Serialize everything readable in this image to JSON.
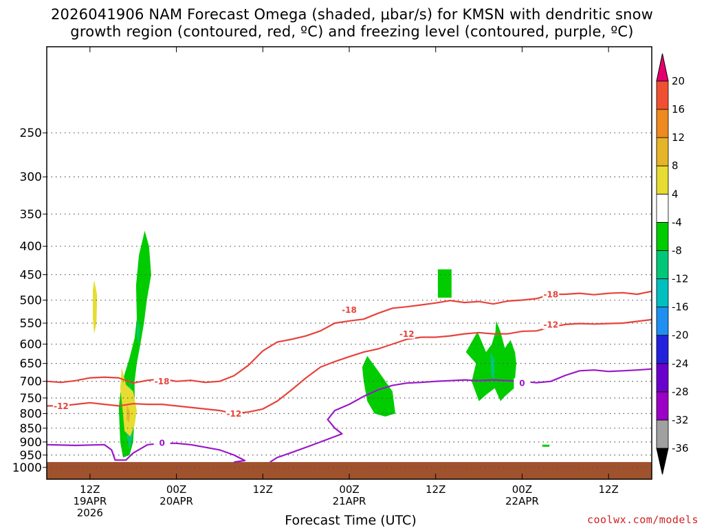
{
  "title": {
    "line1": "2026041906 NAM Forecast Omega (shaded, μbar/s) for KMSN with dendritic snow",
    "line2": "growth region (contoured, red, ºC) and freezing level (contoured, purple, ºC)"
  },
  "credit": "coolwx.com/models",
  "colors": {
    "dgz": "#e8423a",
    "freezing": "#9a17c8",
    "ground": "#a0522d",
    "grid": "#555555",
    "colorbar": [
      "#000000",
      "#a0a0a0",
      "#9b00c4",
      "#6a00cc",
      "#2222dd",
      "#1f8ff0",
      "#00bfbf",
      "#00c878",
      "#00cc00",
      "#ffffff",
      "#e6dc32",
      "#e6b428",
      "#ee8a1e",
      "#f05032",
      "#e6006e"
    ]
  },
  "chart_data": {
    "type": "time-height cross section (filled contour + line contours)",
    "xlabel": "Forecast Time (UTC)",
    "ylabel": "",
    "x_range_hours": [
      0,
      84
    ],
    "y_levels_hPa": [
      250,
      300,
      350,
      400,
      450,
      500,
      550,
      600,
      650,
      700,
      750,
      800,
      850,
      900,
      950,
      1000
    ],
    "y_range_hPa": [
      1050,
      175
    ],
    "y_scale": "log-pressure",
    "x_ticks": [
      {
        "hour": 6,
        "line1": "12Z",
        "line2": "19APR",
        "line3": "2026"
      },
      {
        "hour": 18,
        "line1": "00Z",
        "line2": "20APR",
        "line3": ""
      },
      {
        "hour": 30,
        "line1": "12Z",
        "line2": "",
        "line3": ""
      },
      {
        "hour": 42,
        "line1": "00Z",
        "line2": "21APR",
        "line3": ""
      },
      {
        "hour": 54,
        "line1": "12Z",
        "line2": "",
        "line3": ""
      },
      {
        "hour": 66,
        "line1": "00Z",
        "line2": "22APR",
        "line3": ""
      },
      {
        "hour": 78,
        "line1": "12Z",
        "line2": "",
        "line3": ""
      }
    ],
    "grid": true,
    "ground_pressure_hPa": 978,
    "colorbar": {
      "units": "μbar/s",
      "labels": [
        "20",
        "16",
        "12",
        "8",
        "4",
        "-4",
        "-8",
        "-12",
        "-16",
        "-20",
        "-24",
        "-28",
        "-32",
        "-36"
      ]
    },
    "contours": [
      {
        "label": "-18",
        "color": "red",
        "points": [
          [
            0,
            700
          ],
          [
            2,
            703
          ],
          [
            4,
            698
          ],
          [
            6,
            690
          ],
          [
            8,
            688
          ],
          [
            10,
            690
          ],
          [
            12,
            705
          ],
          [
            14,
            697
          ],
          [
            16,
            693
          ],
          [
            18,
            700
          ],
          [
            20,
            697
          ],
          [
            22,
            703
          ],
          [
            24,
            700
          ],
          [
            26,
            684
          ],
          [
            28,
            655
          ],
          [
            30,
            617
          ],
          [
            32,
            595
          ],
          [
            34,
            588
          ],
          [
            36,
            580
          ],
          [
            38,
            568
          ],
          [
            40,
            550
          ],
          [
            42,
            545
          ],
          [
            44,
            541
          ],
          [
            46,
            528
          ],
          [
            48,
            517
          ],
          [
            50,
            514
          ],
          [
            52,
            510
          ],
          [
            54,
            506
          ],
          [
            56,
            501
          ],
          [
            58,
            505
          ],
          [
            60,
            503
          ],
          [
            62,
            508
          ],
          [
            64,
            502
          ],
          [
            66,
            500
          ],
          [
            68,
            497
          ],
          [
            70,
            488
          ],
          [
            72,
            488
          ],
          [
            74,
            486
          ],
          [
            76,
            489
          ],
          [
            78,
            486
          ],
          [
            80,
            485
          ],
          [
            82,
            488
          ],
          [
            84,
            482
          ]
        ],
        "labels": [
          [
            16,
            700
          ],
          [
            42,
            520
          ],
          [
            70,
            488
          ]
        ]
      },
      {
        "label": "-12",
        "color": "red",
        "points": [
          [
            0,
            775
          ],
          [
            2,
            775
          ],
          [
            4,
            770
          ],
          [
            6,
            765
          ],
          [
            8,
            770
          ],
          [
            10,
            775
          ],
          [
            12,
            768
          ],
          [
            14,
            770
          ],
          [
            16,
            770
          ],
          [
            18,
            775
          ],
          [
            20,
            780
          ],
          [
            22,
            785
          ],
          [
            24,
            790
          ],
          [
            26,
            800
          ],
          [
            28,
            795
          ],
          [
            30,
            785
          ],
          [
            32,
            760
          ],
          [
            34,
            725
          ],
          [
            36,
            690
          ],
          [
            38,
            660
          ],
          [
            40,
            645
          ],
          [
            42,
            632
          ],
          [
            44,
            620
          ],
          [
            46,
            612
          ],
          [
            48,
            600
          ],
          [
            50,
            588
          ],
          [
            52,
            583
          ],
          [
            54,
            583
          ],
          [
            56,
            580
          ],
          [
            58,
            575
          ],
          [
            60,
            572
          ],
          [
            62,
            575
          ],
          [
            64,
            575
          ],
          [
            66,
            569
          ],
          [
            68,
            568
          ],
          [
            70,
            559
          ],
          [
            72,
            553
          ],
          [
            74,
            551
          ],
          [
            76,
            552
          ],
          [
            78,
            551
          ],
          [
            80,
            550
          ],
          [
            82,
            546
          ],
          [
            84,
            542
          ]
        ],
        "labels": [
          [
            2,
            775
          ],
          [
            26,
            800
          ],
          [
            50,
            575
          ],
          [
            70,
            553
          ]
        ]
      },
      {
        "label": "0",
        "color": "purple",
        "points": [
          [
            0,
            910
          ],
          [
            4,
            913
          ],
          [
            8,
            910
          ],
          [
            9,
            930
          ],
          [
            9.5,
            970
          ],
          [
            11,
            970
          ],
          [
            12,
            942
          ],
          [
            14,
            910
          ],
          [
            16,
            905
          ],
          [
            18,
            905
          ],
          [
            20,
            910
          ],
          [
            22,
            920
          ],
          [
            24,
            930
          ],
          [
            26,
            950
          ],
          [
            27.5,
            972
          ],
          [
            26,
            978
          ]
        ],
        "labels": [
          [
            16,
            903
          ]
        ]
      },
      {
        "label": "0",
        "color": "purple",
        "points": [
          [
            31,
            978
          ],
          [
            32,
            960
          ],
          [
            34,
            940
          ],
          [
            36,
            920
          ],
          [
            38,
            900
          ],
          [
            40,
            880
          ],
          [
            41,
            870
          ],
          [
            40,
            850
          ],
          [
            39,
            820
          ],
          [
            40,
            790
          ],
          [
            42,
            770
          ],
          [
            44,
            745
          ],
          [
            46,
            725
          ],
          [
            48,
            712
          ],
          [
            50,
            705
          ],
          [
            52,
            703
          ],
          [
            54,
            700
          ],
          [
            56,
            698
          ],
          [
            58,
            696
          ],
          [
            60,
            698
          ],
          [
            62,
            696
          ],
          [
            64,
            698
          ],
          [
            66,
            700
          ],
          [
            68,
            704
          ],
          [
            70,
            700
          ],
          [
            72,
            683
          ],
          [
            74,
            670
          ],
          [
            76,
            668
          ],
          [
            78,
            672
          ],
          [
            80,
            670
          ],
          [
            82,
            668
          ],
          [
            84,
            665
          ]
        ],
        "labels": [
          [
            66,
            705
          ]
        ]
      }
    ],
    "shaded_regions": [
      {
        "range": "-4 to -8",
        "color": "green",
        "points": [
          [
            10,
            780
          ],
          [
            10.3,
            720
          ],
          [
            10.8,
            680
          ],
          [
            11.5,
            635
          ],
          [
            12.2,
            585
          ],
          [
            12.5,
            540
          ],
          [
            12.4,
            470
          ],
          [
            12.8,
            415
          ],
          [
            13.6,
            375
          ],
          [
            14.2,
            400
          ],
          [
            14.5,
            450
          ],
          [
            13.9,
            500
          ],
          [
            13.5,
            550
          ],
          [
            13,
            600
          ],
          [
            12.5,
            650
          ],
          [
            12.2,
            700
          ],
          [
            12.2,
            800
          ],
          [
            12,
            900
          ],
          [
            11.5,
            950
          ],
          [
            10.6,
            960
          ],
          [
            10.2,
            900
          ]
        ]
      },
      {
        "range": "-8 to -12",
        "color": "teal",
        "points": [
          [
            11.1,
            770
          ],
          [
            11.6,
            700
          ],
          [
            11.9,
            760
          ],
          [
            11.9,
            880
          ],
          [
            11.5,
            930
          ],
          [
            11.1,
            880
          ]
        ]
      },
      {
        "range": "-12 to -16",
        "color": "blue",
        "points": [
          [
            11.3,
            800
          ],
          [
            11.6,
            790
          ],
          [
            11.7,
            860
          ],
          [
            11.4,
            870
          ]
        ]
      },
      {
        "range": "-8 to -12",
        "color": "teal",
        "points": [
          [
            12.6,
            540
          ],
          [
            12.9,
            560
          ],
          [
            12.8,
            600
          ],
          [
            12.5,
            580
          ]
        ]
      },
      {
        "range": "4 to 8",
        "color": "yellow",
        "points": [
          [
            6.6,
            460
          ],
          [
            7,
            490
          ],
          [
            6.9,
            550
          ],
          [
            6.6,
            575
          ],
          [
            6.4,
            540
          ],
          [
            6.4,
            480
          ]
        ]
      },
      {
        "range": "4 to 8",
        "color": "yellow",
        "points": [
          [
            10.4,
            660
          ],
          [
            11,
            710
          ],
          [
            12,
            730
          ],
          [
            12.5,
            790
          ],
          [
            12.2,
            840
          ],
          [
            11.6,
            880
          ],
          [
            10.8,
            860
          ],
          [
            10.5,
            780
          ],
          [
            10.2,
            720
          ]
        ]
      },
      {
        "range": "8 to 12",
        "color": "gold",
        "points": [
          [
            11.1,
            770
          ],
          [
            11.6,
            800
          ],
          [
            11.4,
            830
          ],
          [
            11.1,
            820
          ]
        ]
      },
      {
        "range": "-4 to -8",
        "color": "green",
        "points": [
          [
            44.5,
            630
          ],
          [
            46,
            670
          ],
          [
            48,
            730
          ],
          [
            48.4,
            800
          ],
          [
            47,
            810
          ],
          [
            45.5,
            800
          ],
          [
            44.5,
            760
          ],
          [
            44,
            700
          ],
          [
            43.8,
            660
          ]
        ]
      },
      {
        "range": "-4 to -8",
        "color": "green",
        "points": [
          [
            54.3,
            440
          ],
          [
            56.2,
            440
          ],
          [
            56.2,
            495
          ],
          [
            54.3,
            495
          ]
        ]
      },
      {
        "range": "-4 to -8",
        "color": "green",
        "points": [
          [
            58.2,
            620
          ],
          [
            59.8,
            570
          ],
          [
            61,
            620
          ],
          [
            61.8,
            600
          ],
          [
            62.3,
            570
          ],
          [
            62.4,
            545
          ],
          [
            63,
            570
          ],
          [
            63.6,
            610
          ],
          [
            64.4,
            590
          ],
          [
            65,
            620
          ],
          [
            65.2,
            650
          ],
          [
            64.9,
            720
          ],
          [
            63.6,
            745
          ],
          [
            63,
            760
          ],
          [
            62.2,
            720
          ],
          [
            61,
            740
          ],
          [
            60,
            760
          ],
          [
            59,
            700
          ],
          [
            59.6,
            650
          ]
        ]
      },
      {
        "range": "-8 to -12",
        "color": "teal",
        "points": [
          [
            61.6,
            620
          ],
          [
            62.2,
            640
          ],
          [
            62.1,
            700
          ],
          [
            61.7,
            680
          ]
        ]
      },
      {
        "range": "-4 to -8",
        "color": "green",
        "points": [
          [
            68.8,
            910
          ],
          [
            69.8,
            910
          ],
          [
            69.8,
            918
          ],
          [
            68.8,
            918
          ]
        ]
      }
    ]
  }
}
